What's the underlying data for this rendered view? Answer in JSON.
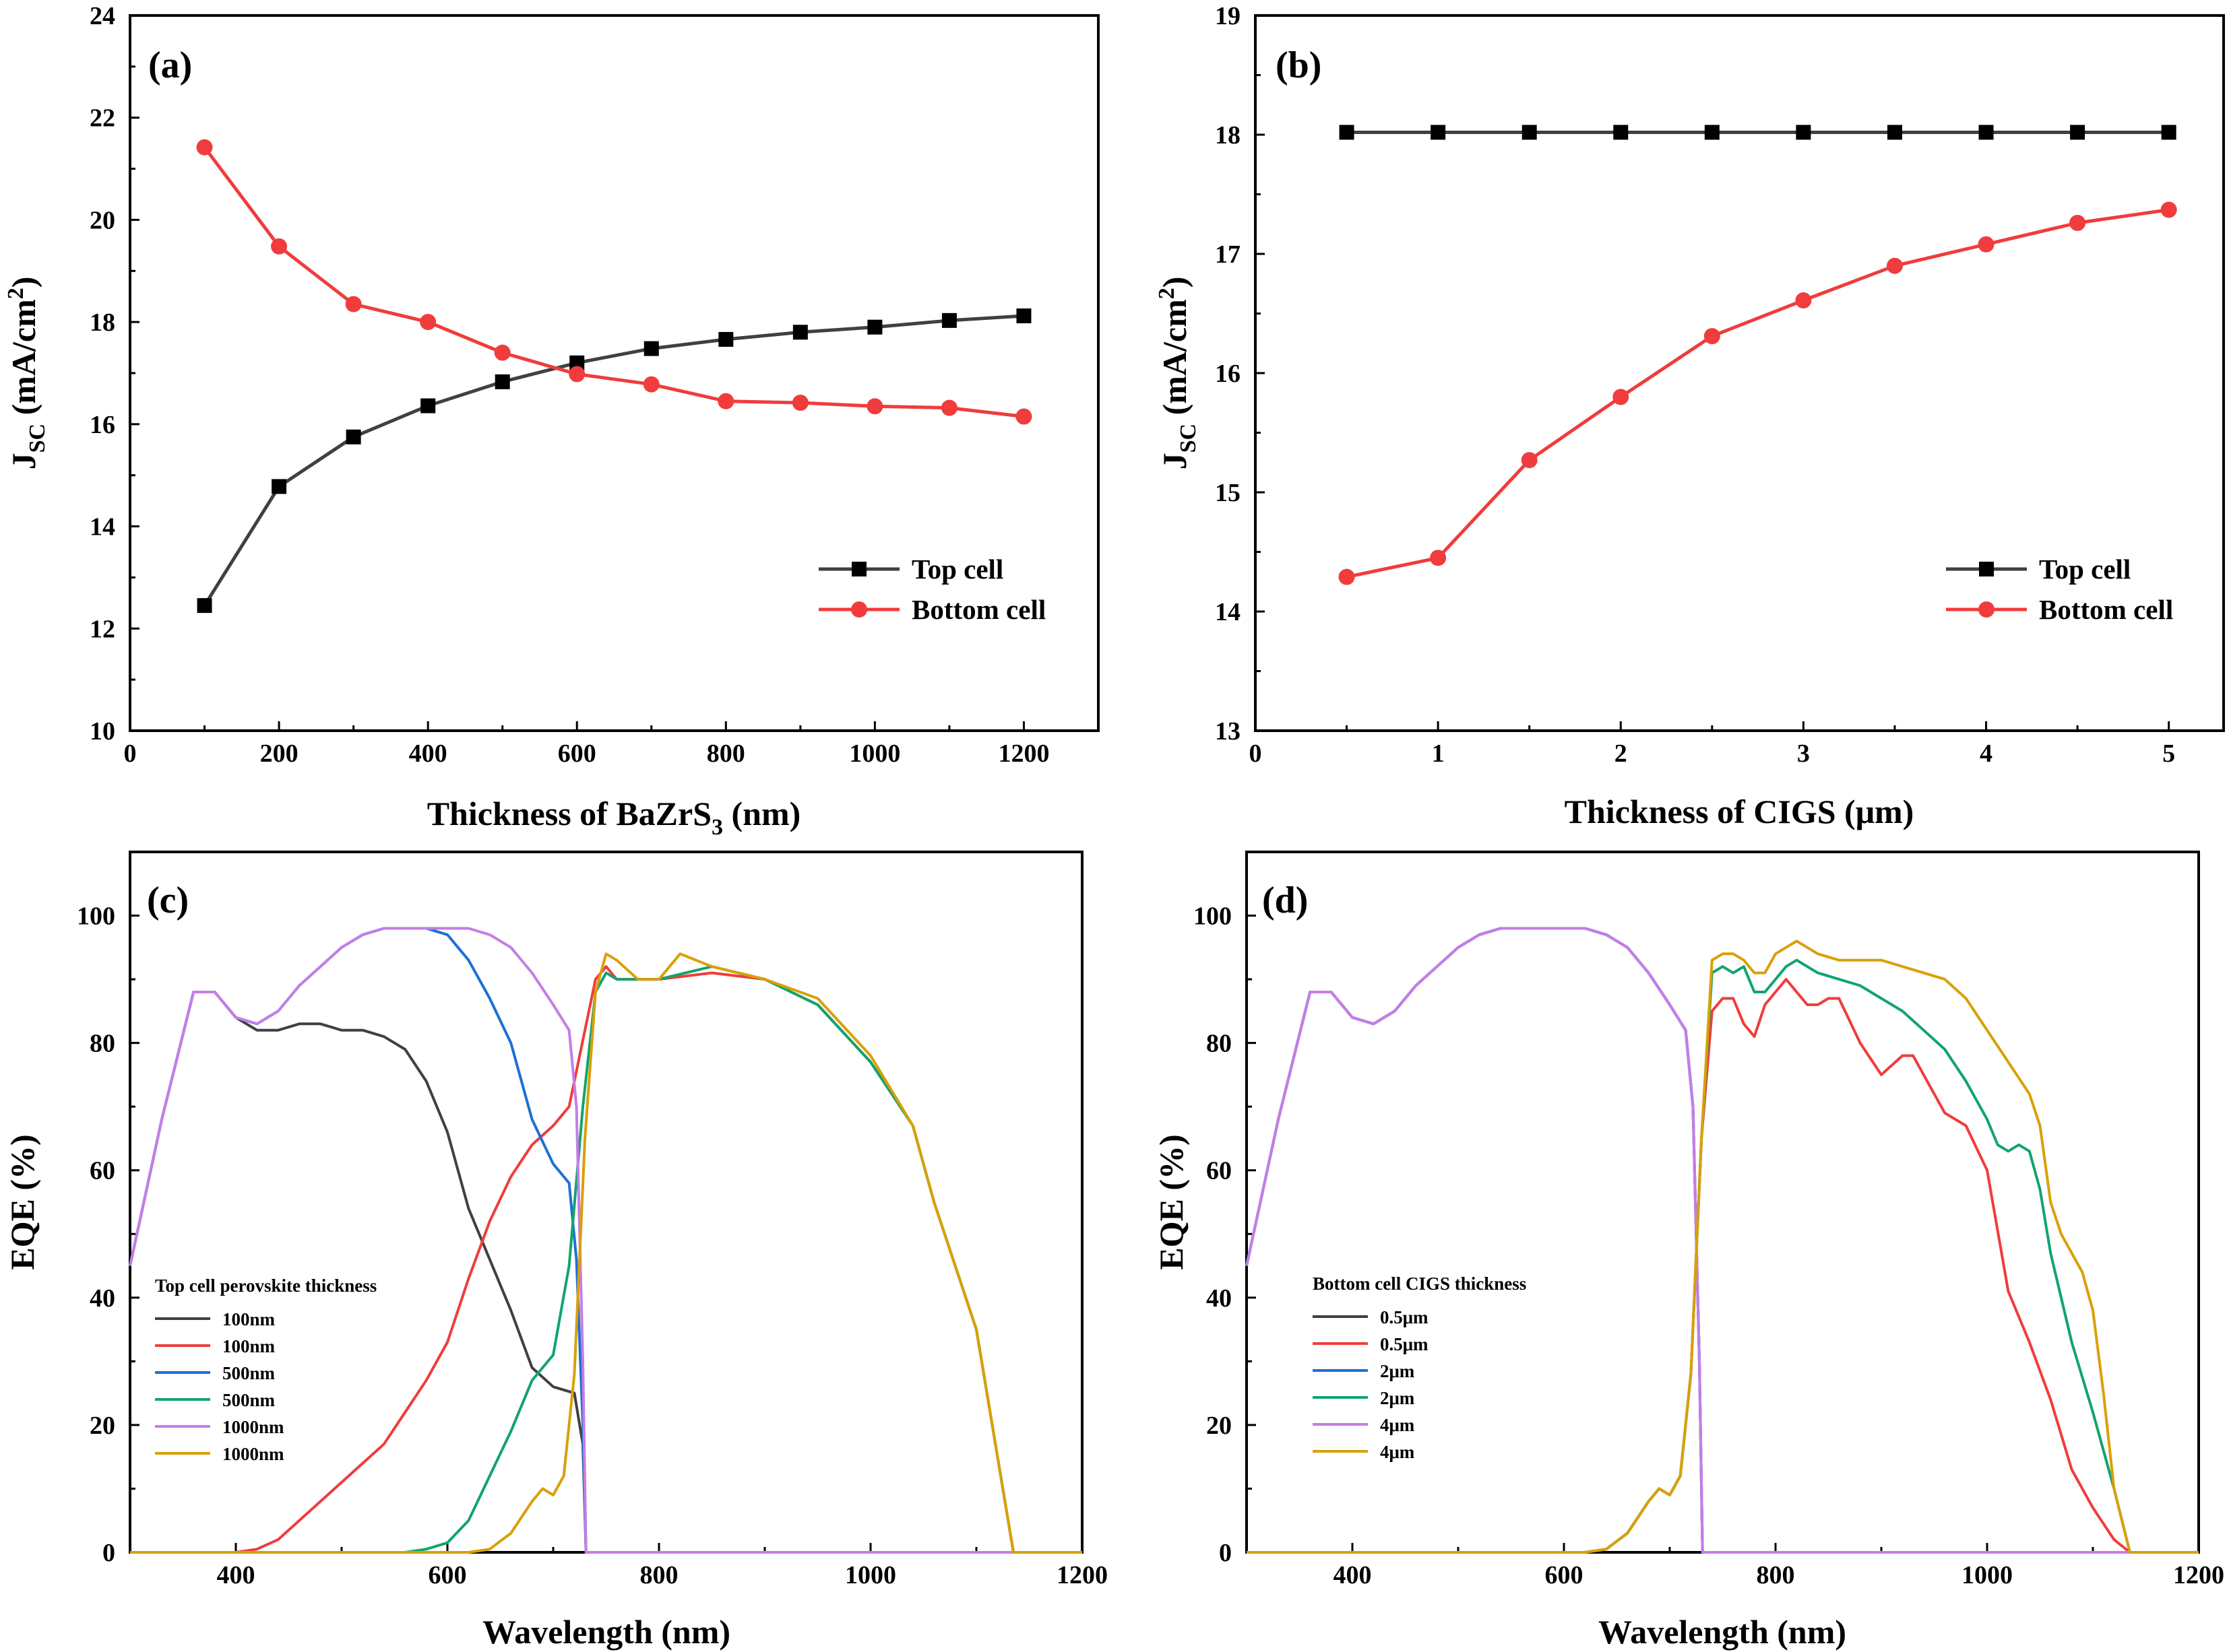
{
  "chart_data": [
    {
      "panel": "(a)",
      "type": "line",
      "xlabel": "Thickness of BaZrS",
      "xlabel_sub": "3",
      "xlabel_tail": " (nm)",
      "ylabel": "J",
      "ylabel_sub": "SC",
      "ylabel_tail": " (mA/cm",
      "ylabel_sup": "2",
      "ylabel_end": ")",
      "xlim": [
        0,
        1300
      ],
      "ylim": [
        10,
        24
      ],
      "xticks": [
        0,
        200,
        400,
        600,
        800,
        1000,
        1200
      ],
      "yticks": [
        10,
        12,
        14,
        16,
        18,
        20,
        22,
        24
      ],
      "x": [
        100,
        200,
        300,
        400,
        500,
        600,
        700,
        800,
        900,
        1000,
        1100,
        1200
      ],
      "series": [
        {
          "name": "Top cell",
          "color": "#404040",
          "marker": "square",
          "values": [
            12.45,
            14.78,
            15.75,
            16.36,
            16.83,
            17.2,
            17.48,
            17.66,
            17.8,
            17.9,
            18.03,
            18.12
          ]
        },
        {
          "name": "Bottom cell",
          "color": "#f03c3c",
          "marker": "circle",
          "values": [
            21.42,
            19.48,
            18.35,
            18.0,
            17.4,
            16.98,
            16.78,
            16.45,
            16.42,
            16.35,
            16.32,
            16.15
          ]
        }
      ],
      "legend": "right"
    },
    {
      "panel": "(b)",
      "type": "line",
      "xlabel": "Thickness of  CIGS (μm)",
      "ylabel": "J",
      "ylabel_sub": "SC",
      "ylabel_tail": " (mA/cm",
      "ylabel_sup": "2",
      "ylabel_end": ")",
      "xlim": [
        0,
        5.3
      ],
      "ylim": [
        13,
        19
      ],
      "xticks": [
        0,
        1,
        2,
        3,
        4,
        5
      ],
      "yticks": [
        13,
        14,
        15,
        16,
        17,
        18,
        19
      ],
      "x": [
        0.5,
        1,
        1.5,
        2,
        2.5,
        3,
        3.5,
        4,
        4.5,
        5
      ],
      "series": [
        {
          "name": "Top cell",
          "color": "#404040",
          "marker": "square",
          "values": [
            18.02,
            18.02,
            18.02,
            18.02,
            18.02,
            18.02,
            18.02,
            18.02,
            18.02,
            18.02
          ]
        },
        {
          "name": "Bottom cell",
          "color": "#f03c3c",
          "marker": "circle",
          "values": [
            14.29,
            14.45,
            15.27,
            15.8,
            16.31,
            16.61,
            16.9,
            17.08,
            17.26,
            17.37
          ]
        }
      ],
      "legend": "right"
    },
    {
      "panel": "(c)",
      "type": "line",
      "xlabel": "Wavelength (nm)",
      "ylabel": "EQE (%)",
      "xlim": [
        300,
        1200
      ],
      "ylim": [
        0,
        110
      ],
      "xticks": [
        400,
        600,
        800,
        1000,
        1200
      ],
      "yticks": [
        0,
        20,
        40,
        60,
        80,
        100
      ],
      "legend_title": "Top cell perovskite thickness",
      "series": [
        {
          "name": "100nm",
          "color": "#404040",
          "x": [
            300,
            330,
            360,
            380,
            400,
            420,
            440,
            460,
            480,
            500,
            520,
            540,
            560,
            580,
            600,
            620,
            640,
            660,
            680,
            700,
            720,
            728,
            731,
            760,
            900,
            1050,
            1200
          ],
          "values": [
            45,
            68,
            88,
            88,
            84,
            82,
            82,
            83,
            83,
            82,
            82,
            81,
            79,
            74,
            66,
            54,
            46,
            38,
            29,
            26,
            25,
            17,
            0,
            0,
            0,
            0,
            0
          ]
        },
        {
          "name": "100nm",
          "color": "#f03c3c",
          "x": [
            300,
            400,
            420,
            440,
            460,
            480,
            500,
            520,
            540,
            560,
            580,
            600,
            620,
            640,
            660,
            680,
            700,
            715,
            730,
            740,
            750,
            760,
            780,
            800,
            850,
            900,
            950,
            1000,
            1040,
            1060,
            1080,
            1100,
            1120,
            1135,
            1200
          ],
          "values": [
            0,
            0,
            0.5,
            2,
            5,
            8,
            11,
            14,
            17,
            22,
            27,
            33,
            43,
            52,
            59,
            64,
            67,
            70,
            82,
            90,
            92,
            90,
            90,
            90,
            91,
            90,
            86,
            77,
            67,
            55,
            45,
            35,
            15,
            0,
            0
          ]
        },
        {
          "name": "500nm",
          "color": "#1f6fd4",
          "x": [
            300,
            330,
            360,
            380,
            400,
            420,
            440,
            460,
            480,
            500,
            520,
            540,
            560,
            580,
            600,
            620,
            640,
            660,
            680,
            700,
            715,
            722,
            728,
            731,
            760,
            900,
            1050,
            1200
          ],
          "values": [
            45,
            68,
            88,
            88,
            84,
            83,
            85,
            89,
            92,
            95,
            97,
            98,
            98,
            98,
            97,
            93,
            87,
            80,
            68,
            61,
            58,
            46,
            20,
            0,
            0,
            0,
            0,
            0
          ]
        },
        {
          "name": "500nm",
          "color": "#12a46d",
          "x": [
            300,
            560,
            580,
            600,
            620,
            640,
            660,
            680,
            700,
            715,
            728,
            740,
            750,
            760,
            780,
            800,
            850,
            900,
            950,
            1000,
            1040,
            1060,
            1080,
            1100,
            1120,
            1135,
            1200
          ],
          "values": [
            0,
            0,
            0.5,
            1.5,
            5,
            12,
            19,
            27,
            31,
            45,
            70,
            88,
            91,
            90,
            90,
            90,
            92,
            90,
            86,
            77,
            67,
            55,
            45,
            35,
            15,
            0,
            0
          ]
        },
        {
          "name": "1000nm",
          "color": "#c57de8",
          "x": [
            300,
            330,
            360,
            380,
            400,
            420,
            440,
            460,
            480,
            500,
            520,
            540,
            560,
            580,
            600,
            620,
            640,
            660,
            680,
            700,
            715,
            722,
            728,
            731,
            760,
            1000,
            1200
          ],
          "values": [
            45,
            68,
            88,
            88,
            84,
            83,
            85,
            89,
            92,
            95,
            97,
            98,
            98,
            98,
            98,
            98,
            97,
            95,
            91,
            86,
            82,
            70,
            30,
            0,
            0,
            0,
            0
          ]
        },
        {
          "name": "1000nm",
          "color": "#d9a008",
          "x": [
            300,
            620,
            640,
            660,
            680,
            690,
            700,
            710,
            720,
            730,
            740,
            750,
            760,
            780,
            800,
            820,
            850,
            900,
            950,
            1000,
            1040,
            1060,
            1080,
            1100,
            1120,
            1135,
            1200
          ],
          "values": [
            0,
            0,
            0.5,
            3,
            8,
            10,
            9,
            12,
            28,
            65,
            88,
            94,
            93,
            90,
            90,
            94,
            92,
            90,
            87,
            78,
            67,
            55,
            45,
            35,
            15,
            0,
            0
          ]
        }
      ]
    },
    {
      "panel": "(d)",
      "type": "line",
      "xlabel": "Wavelength (nm)",
      "ylabel": "EQE (%)",
      "xlim": [
        300,
        1200
      ],
      "ylim": [
        0,
        110
      ],
      "xticks": [
        400,
        600,
        800,
        1000,
        1200
      ],
      "yticks": [
        0,
        20,
        40,
        60,
        80,
        100
      ],
      "legend_title": "Bottom cell CIGS thickness",
      "series": [
        {
          "name": "0.5μm",
          "color": "#404040",
          "x": [
            300,
            330,
            360,
            380,
            400,
            420,
            440,
            460,
            480,
            500,
            520,
            540,
            560,
            580,
            600,
            620,
            640,
            660,
            680,
            700,
            715,
            722,
            728,
            731,
            760,
            1000,
            1200
          ],
          "values": [
            45,
            68,
            88,
            88,
            84,
            83,
            85,
            89,
            92,
            95,
            97,
            98,
            98,
            98,
            98,
            98,
            97,
            95,
            91,
            86,
            82,
            70,
            30,
            0,
            0,
            0,
            0
          ]
        },
        {
          "name": "0.5μm",
          "color": "#f03c3c",
          "x": [
            300,
            620,
            640,
            660,
            680,
            690,
            700,
            710,
            720,
            730,
            740,
            750,
            760,
            770,
            780,
            790,
            800,
            810,
            820,
            830,
            840,
            850,
            860,
            880,
            900,
            920,
            930,
            940,
            950,
            960,
            980,
            1000,
            1020,
            1040,
            1060,
            1080,
            1100,
            1120,
            1135,
            1200
          ],
          "values": [
            0,
            0,
            0.5,
            3,
            8,
            10,
            9,
            12,
            28,
            65,
            85,
            87,
            87,
            83,
            81,
            86,
            88,
            90,
            88,
            86,
            86,
            87,
            87,
            80,
            75,
            78,
            78,
            75,
            72,
            69,
            67,
            60,
            41,
            33,
            24,
            13,
            7,
            2,
            0,
            0
          ]
        },
        {
          "name": "2μm",
          "color": "#1f6fd4",
          "x": [
            300,
            330,
            360,
            380,
            400,
            420,
            440,
            460,
            480,
            500,
            520,
            540,
            560,
            580,
            600,
            620,
            640,
            660,
            680,
            700,
            715,
            722,
            728,
            731,
            760,
            1000,
            1200
          ],
          "values": [
            45,
            68,
            88,
            88,
            84,
            83,
            85,
            89,
            92,
            95,
            97,
            98,
            98,
            98,
            98,
            98,
            97,
            95,
            91,
            86,
            82,
            70,
            30,
            0,
            0,
            0,
            0
          ]
        },
        {
          "name": "2μm",
          "color": "#12a46d",
          "x": [
            300,
            620,
            640,
            660,
            680,
            690,
            700,
            710,
            720,
            730,
            740,
            750,
            760,
            770,
            780,
            790,
            800,
            810,
            820,
            830,
            840,
            860,
            880,
            900,
            920,
            940,
            960,
            980,
            1000,
            1010,
            1020,
            1030,
            1040,
            1050,
            1060,
            1080,
            1100,
            1120,
            1135,
            1200
          ],
          "values": [
            0,
            0,
            0.5,
            3,
            8,
            10,
            9,
            12,
            28,
            65,
            91,
            92,
            91,
            92,
            88,
            88,
            90,
            92,
            93,
            92,
            91,
            90,
            89,
            87,
            85,
            82,
            79,
            74,
            68,
            64,
            63,
            64,
            63,
            57,
            47,
            33,
            22,
            10,
            0,
            0
          ]
        },
        {
          "name": "4μm",
          "color": "#c57de8",
          "x": [
            300,
            330,
            360,
            380,
            400,
            420,
            440,
            460,
            480,
            500,
            520,
            540,
            560,
            580,
            600,
            620,
            640,
            660,
            680,
            700,
            715,
            722,
            728,
            731,
            760,
            1000,
            1200
          ],
          "values": [
            45,
            68,
            88,
            88,
            84,
            83,
            85,
            89,
            92,
            95,
            97,
            98,
            98,
            98,
            98,
            98,
            97,
            95,
            91,
            86,
            82,
            70,
            30,
            0,
            0,
            0,
            0
          ]
        },
        {
          "name": "4μm",
          "color": "#d9a008",
          "x": [
            300,
            620,
            640,
            660,
            680,
            690,
            700,
            710,
            720,
            730,
            740,
            750,
            760,
            770,
            780,
            790,
            800,
            810,
            820,
            830,
            840,
            860,
            880,
            900,
            920,
            940,
            960,
            980,
            1000,
            1020,
            1040,
            1050,
            1060,
            1070,
            1080,
            1090,
            1100,
            1110,
            1120,
            1135,
            1200
          ],
          "values": [
            0,
            0,
            0.5,
            3,
            8,
            10,
            9,
            12,
            28,
            65,
            93,
            94,
            94,
            93,
            91,
            91,
            94,
            95,
            96,
            95,
            94,
            93,
            93,
            93,
            92,
            91,
            90,
            87,
            82,
            77,
            72,
            67,
            55,
            50,
            47,
            44,
            38,
            25,
            10,
            0,
            0
          ]
        }
      ]
    }
  ]
}
